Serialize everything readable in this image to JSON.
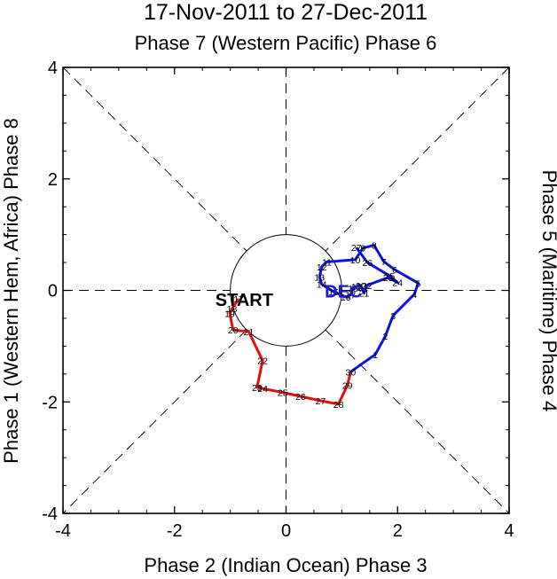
{
  "chart_data": {
    "type": "line",
    "title": "17-Nov-2011 to 27-Dec-2011",
    "subtitle": "Phase 7 (Western Pacific) Phase 6",
    "xlabel": "Phase 2 (Indian Ocean) Phase 3",
    "ylabel_left": "Phase 1 (Western Hem, Africa) Phase 8",
    "ylabel_right": "Phase 5 (Maritime) Phase 4",
    "xlim": [
      -4,
      4
    ],
    "ylim": [
      -4,
      4
    ],
    "xticks": [
      -4,
      -2,
      0,
      2,
      4
    ],
    "yticks": [
      -4,
      -2,
      0,
      2,
      4
    ],
    "xtick_labels": [
      "-4",
      "-2",
      "0",
      "2",
      "4"
    ],
    "ytick_labels": [
      "-4",
      "-2",
      "0",
      "2",
      "4"
    ],
    "unit_circle_radius": 1,
    "annotations": [
      {
        "text": "START",
        "x": -0.75,
        "y": -0.15,
        "color": "#000000"
      },
      {
        "text": "DEC",
        "x": 1.03,
        "y": 0.0,
        "color": "#1a1acc"
      }
    ],
    "series": [
      {
        "name": "November",
        "color": "#e01010",
        "points": [
          {
            "day": "17",
            "x": -0.85,
            "y": -0.15
          },
          {
            "day": "18",
            "x": -0.97,
            "y": -0.33
          },
          {
            "day": "19",
            "x": -1.01,
            "y": -0.41
          },
          {
            "day": "20",
            "x": -0.95,
            "y": -0.71
          },
          {
            "day": "21",
            "x": -0.67,
            "y": -0.74
          },
          {
            "day": "22",
            "x": -0.42,
            "y": -1.26
          },
          {
            "day": "23",
            "x": -0.52,
            "y": -1.74
          },
          {
            "day": "24",
            "x": -0.42,
            "y": -1.76
          },
          {
            "day": "25",
            "x": -0.06,
            "y": -1.83
          },
          {
            "day": "26",
            "x": 0.26,
            "y": -1.9
          },
          {
            "day": "27",
            "x": 0.62,
            "y": -1.98
          },
          {
            "day": "28",
            "x": 0.94,
            "y": -2.04
          },
          {
            "day": "29",
            "x": 1.1,
            "y": -1.7
          },
          {
            "day": "30",
            "x": 1.16,
            "y": -1.46
          }
        ]
      },
      {
        "name": "December",
        "color": "#1010e0",
        "points": [
          {
            "day": "1",
            "x": 1.6,
            "y": -1.15
          },
          {
            "day": "2",
            "x": 1.78,
            "y": -0.82
          },
          {
            "day": "3",
            "x": 1.92,
            "y": -0.45
          },
          {
            "day": "4",
            "x": 2.3,
            "y": -0.07
          },
          {
            "day": "5",
            "x": 2.37,
            "y": 0.13
          },
          {
            "day": "6",
            "x": 1.95,
            "y": 0.37
          },
          {
            "day": "7",
            "x": 1.75,
            "y": 0.52
          },
          {
            "day": "8",
            "x": 1.58,
            "y": 0.81
          },
          {
            "day": "9",
            "x": 1.38,
            "y": 0.76
          },
          {
            "day": "10",
            "x": 1.24,
            "y": 0.55
          },
          {
            "day": "11",
            "x": 0.73,
            "y": 0.51
          },
          {
            "day": "12",
            "x": 0.64,
            "y": 0.42
          },
          {
            "day": "13",
            "x": 0.6,
            "y": 0.24
          },
          {
            "day": "14",
            "x": 0.64,
            "y": 0.11
          },
          {
            "day": "15",
            "x": 0.85,
            "y": -0.02
          },
          {
            "day": "16",
            "x": 1.07,
            "y": -0.12
          },
          {
            "day": "17",
            "x": 1.16,
            "y": -0.08
          },
          {
            "day": "18",
            "x": 1.2,
            "y": 0.04
          },
          {
            "day": "19",
            "x": 1.26,
            "y": 0.07
          },
          {
            "day": "20",
            "x": 1.34,
            "y": 0.09
          },
          {
            "day": "21",
            "x": 1.4,
            "y": -0.05
          },
          {
            "day": "22",
            "x": 1.45,
            "y": 0.09
          },
          {
            "day": "23",
            "x": 1.83,
            "y": 0.23
          },
          {
            "day": "24",
            "x": 2.0,
            "y": 0.14
          },
          {
            "day": "25",
            "x": 1.86,
            "y": 0.26
          },
          {
            "day": "26",
            "x": 1.46,
            "y": 0.5
          },
          {
            "day": "27",
            "x": 1.26,
            "y": 0.77
          }
        ]
      }
    ]
  }
}
